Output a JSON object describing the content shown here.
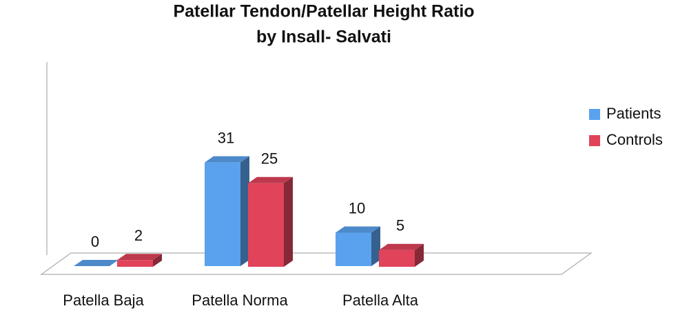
{
  "chart_data": {
    "type": "bar3d",
    "title": [
      "Patellar Tendon/Patellar Height Ratio",
      "by Insall- Salvati"
    ],
    "categories": [
      "Patella Baja",
      "Patella Norma",
      "Patella Alta"
    ],
    "series": [
      {
        "name": "Patients",
        "color": "#5aa2ee",
        "values": [
          0,
          31,
          10
        ]
      },
      {
        "name": "Controls",
        "color": "#e0435a",
        "values": [
          2,
          25,
          5
        ]
      }
    ],
    "legend": "right"
  }
}
